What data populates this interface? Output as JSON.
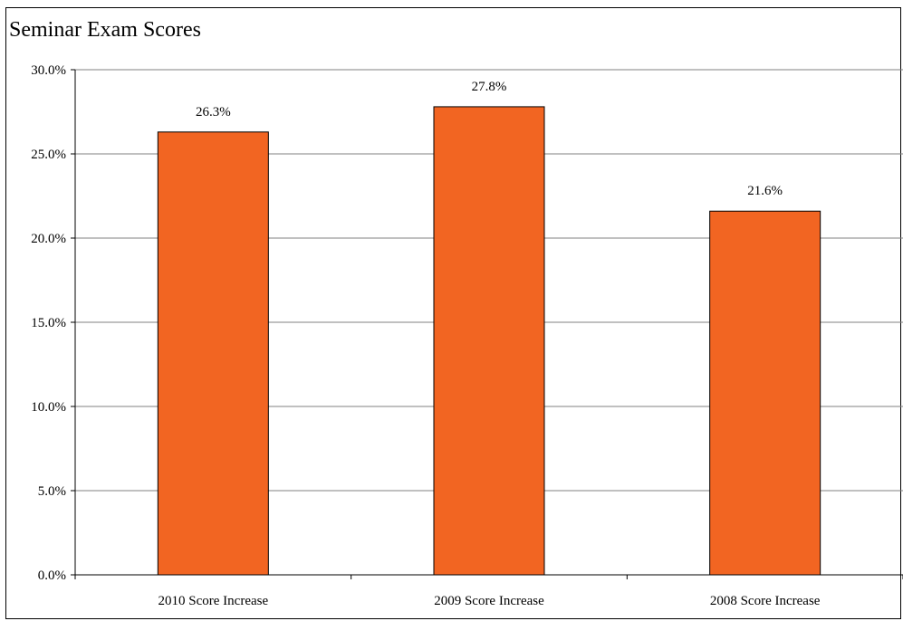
{
  "chart_data": {
    "type": "bar",
    "title": "Seminar Exam Scores",
    "categories": [
      "2010 Score Increase",
      "2009 Score Increase",
      "2008 Score Increase"
    ],
    "values": [
      26.3,
      27.8,
      21.6
    ],
    "data_labels": [
      "26.3%",
      "27.8%",
      "21.6%"
    ],
    "ylim": [
      0,
      30
    ],
    "yticks": [
      0,
      5,
      10,
      15,
      20,
      25,
      30
    ],
    "ytick_labels": [
      "0.0%",
      "5.0%",
      "10.0%",
      "15.0%",
      "20.0%",
      "25.0%",
      "30.0%"
    ],
    "xlabel": "",
    "ylabel": "",
    "grid": true,
    "legend": "none",
    "colors": {
      "bar_fill": "#F26522",
      "bar_stroke": "#000000",
      "gridline": "#808080",
      "axis": "#000000"
    }
  }
}
